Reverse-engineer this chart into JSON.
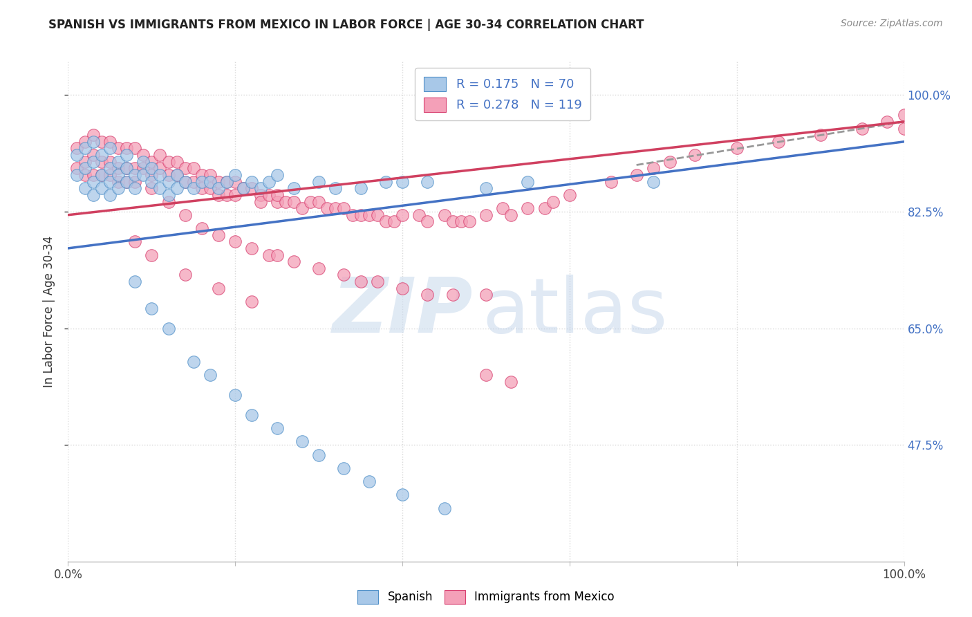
{
  "title": "SPANISH VS IMMIGRANTS FROM MEXICO IN LABOR FORCE | AGE 30-34 CORRELATION CHART",
  "source": "Source: ZipAtlas.com",
  "ylabel": "In Labor Force | Age 30-34",
  "xlim": [
    0.0,
    1.0
  ],
  "ylim": [
    0.3,
    1.05
  ],
  "yticks": [
    0.475,
    0.65,
    0.825,
    1.0
  ],
  "ytick_labels": [
    "47.5%",
    "65.0%",
    "82.5%",
    "100.0%"
  ],
  "blue_color": "#a8c8e8",
  "pink_color": "#f4a0b8",
  "blue_edge_color": "#5090c8",
  "pink_edge_color": "#d84070",
  "blue_line_color": "#4472c4",
  "pink_line_color": "#d04060",
  "axis_label_color": "#4472c4",
  "background_color": "#ffffff",
  "grid_color": "#d8d8d8",
  "blue_trendline": [
    0.77,
    0.93
  ],
  "pink_trendline": [
    0.82,
    0.96
  ],
  "dashed_line_start_x": 0.68,
  "dashed_line": [
    0.895,
    0.96
  ],
  "blue_scatter_x": [
    0.01,
    0.01,
    0.02,
    0.02,
    0.02,
    0.03,
    0.03,
    0.03,
    0.03,
    0.04,
    0.04,
    0.04,
    0.05,
    0.05,
    0.05,
    0.05,
    0.06,
    0.06,
    0.06,
    0.07,
    0.07,
    0.07,
    0.08,
    0.08,
    0.09,
    0.09,
    0.1,
    0.1,
    0.11,
    0.11,
    0.12,
    0.12,
    0.13,
    0.13,
    0.14,
    0.15,
    0.16,
    0.17,
    0.18,
    0.19,
    0.2,
    0.21,
    0.22,
    0.23,
    0.24,
    0.25,
    0.27,
    0.3,
    0.32,
    0.35,
    0.38,
    0.4,
    0.43,
    0.5,
    0.55,
    0.7,
    0.08,
    0.1,
    0.12,
    0.15,
    0.17,
    0.2,
    0.22,
    0.25,
    0.28,
    0.3,
    0.33,
    0.36,
    0.4,
    0.45
  ],
  "blue_scatter_y": [
    0.91,
    0.88,
    0.92,
    0.89,
    0.86,
    0.93,
    0.9,
    0.87,
    0.85,
    0.91,
    0.88,
    0.86,
    0.92,
    0.89,
    0.87,
    0.85,
    0.9,
    0.88,
    0.86,
    0.91,
    0.89,
    0.87,
    0.88,
    0.86,
    0.9,
    0.88,
    0.89,
    0.87,
    0.88,
    0.86,
    0.87,
    0.85,
    0.88,
    0.86,
    0.87,
    0.86,
    0.87,
    0.87,
    0.86,
    0.87,
    0.88,
    0.86,
    0.87,
    0.86,
    0.87,
    0.88,
    0.86,
    0.87,
    0.86,
    0.86,
    0.87,
    0.87,
    0.87,
    0.86,
    0.87,
    0.87,
    0.72,
    0.68,
    0.65,
    0.6,
    0.58,
    0.55,
    0.52,
    0.5,
    0.48,
    0.46,
    0.44,
    0.42,
    0.4,
    0.38
  ],
  "pink_scatter_x": [
    0.01,
    0.01,
    0.02,
    0.02,
    0.02,
    0.03,
    0.03,
    0.03,
    0.04,
    0.04,
    0.04,
    0.05,
    0.05,
    0.05,
    0.06,
    0.06,
    0.06,
    0.07,
    0.07,
    0.07,
    0.08,
    0.08,
    0.08,
    0.09,
    0.09,
    0.1,
    0.1,
    0.11,
    0.11,
    0.12,
    0.12,
    0.13,
    0.13,
    0.14,
    0.14,
    0.15,
    0.15,
    0.16,
    0.16,
    0.17,
    0.17,
    0.18,
    0.18,
    0.19,
    0.19,
    0.2,
    0.2,
    0.21,
    0.22,
    0.23,
    0.23,
    0.24,
    0.25,
    0.25,
    0.26,
    0.27,
    0.28,
    0.29,
    0.3,
    0.31,
    0.32,
    0.33,
    0.34,
    0.35,
    0.36,
    0.37,
    0.38,
    0.39,
    0.4,
    0.42,
    0.43,
    0.45,
    0.46,
    0.47,
    0.48,
    0.5,
    0.52,
    0.53,
    0.55,
    0.57,
    0.58,
    0.6,
    0.65,
    0.68,
    0.7,
    0.72,
    0.75,
    0.8,
    0.85,
    0.9,
    0.95,
    0.98,
    1.0,
    1.0,
    0.08,
    0.1,
    0.14,
    0.18,
    0.22,
    0.5,
    0.53,
    0.1,
    0.12,
    0.14,
    0.16,
    0.18,
    0.2,
    0.22,
    0.24,
    0.25,
    0.27,
    0.3,
    0.33,
    0.35,
    0.37,
    0.4,
    0.43,
    0.46,
    0.5
  ],
  "pink_scatter_y": [
    0.92,
    0.89,
    0.93,
    0.9,
    0.88,
    0.94,
    0.91,
    0.88,
    0.93,
    0.9,
    0.88,
    0.93,
    0.9,
    0.88,
    0.92,
    0.89,
    0.87,
    0.92,
    0.89,
    0.87,
    0.92,
    0.89,
    0.87,
    0.91,
    0.89,
    0.9,
    0.88,
    0.91,
    0.89,
    0.9,
    0.88,
    0.9,
    0.88,
    0.89,
    0.87,
    0.89,
    0.87,
    0.88,
    0.86,
    0.88,
    0.86,
    0.87,
    0.85,
    0.87,
    0.85,
    0.87,
    0.85,
    0.86,
    0.86,
    0.85,
    0.84,
    0.85,
    0.84,
    0.85,
    0.84,
    0.84,
    0.83,
    0.84,
    0.84,
    0.83,
    0.83,
    0.83,
    0.82,
    0.82,
    0.82,
    0.82,
    0.81,
    0.81,
    0.82,
    0.82,
    0.81,
    0.82,
    0.81,
    0.81,
    0.81,
    0.82,
    0.83,
    0.82,
    0.83,
    0.83,
    0.84,
    0.85,
    0.87,
    0.88,
    0.89,
    0.9,
    0.91,
    0.92,
    0.93,
    0.94,
    0.95,
    0.96,
    0.97,
    0.95,
    0.78,
    0.76,
    0.73,
    0.71,
    0.69,
    0.58,
    0.57,
    0.86,
    0.84,
    0.82,
    0.8,
    0.79,
    0.78,
    0.77,
    0.76,
    0.76,
    0.75,
    0.74,
    0.73,
    0.72,
    0.72,
    0.71,
    0.7,
    0.7,
    0.7
  ]
}
